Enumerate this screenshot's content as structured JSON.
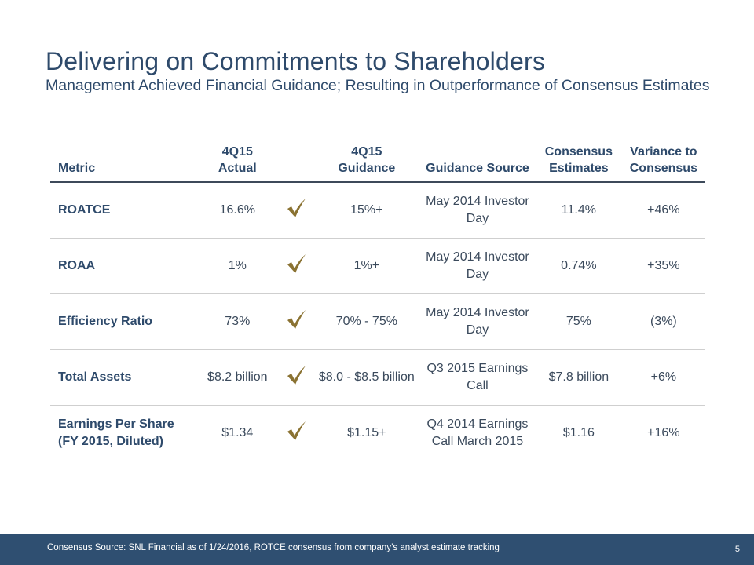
{
  "title": "Delivering on Commitments to Shareholders",
  "subtitle": "Management Achieved Financial Guidance; Resulting in Outperformance of Consensus Estimates",
  "colors": {
    "title": "#2e4a6b",
    "check": "#8a7232",
    "footer_bg": "#2f4f71"
  },
  "table": {
    "headers": {
      "metric": "Metric",
      "actual_line1": "4Q15",
      "actual_line2": "Actual",
      "guidance_line1": "4Q15",
      "guidance_line2": "Guidance",
      "source": "Guidance Source",
      "consensus_line1": "Consensus",
      "consensus_line2": "Estimates",
      "variance_line1": "Variance to",
      "variance_line2": "Consensus"
    },
    "rows": [
      {
        "metric_line1": "ROATCE",
        "metric_line2": "",
        "actual": "16.6%",
        "check_icon": "checkmark-icon",
        "guidance": "15%+",
        "source_line1": "May 2014 Investor",
        "source_line2": "Day",
        "consensus": "11.4%",
        "variance": "+46%"
      },
      {
        "metric_line1": "ROAA",
        "metric_line2": "",
        "actual": "1%",
        "check_icon": "checkmark-icon",
        "guidance": "1%+",
        "source_line1": "May 2014 Investor",
        "source_line2": "Day",
        "consensus": "0.74%",
        "variance": "+35%"
      },
      {
        "metric_line1": "Efficiency Ratio",
        "metric_line2": "",
        "actual": "73%",
        "check_icon": "checkmark-icon",
        "guidance": "70% - 75%",
        "source_line1": "May 2014 Investor",
        "source_line2": "Day",
        "consensus": "75%",
        "variance": "(3%)"
      },
      {
        "metric_line1": "Total Assets",
        "metric_line2": "",
        "actual": "$8.2 billion",
        "check_icon": "checkmark-icon",
        "guidance": "$8.0 - $8.5 billion",
        "source_line1": "Q3 2015 Earnings",
        "source_line2": "Call",
        "consensus": "$7.8 billion",
        "variance": "+6%"
      },
      {
        "metric_line1": "Earnings Per Share",
        "metric_line2": "(FY 2015, Diluted)",
        "actual": "$1.34",
        "check_icon": "checkmark-icon",
        "guidance": "$1.15+",
        "source_line1": "Q4 2014 Earnings",
        "source_line2": "Call March 2015",
        "consensus": "$1.16",
        "variance": "+16%"
      }
    ]
  },
  "footer": {
    "note": "Consensus Source: SNL Financial as of 1/24/2016, ROTCE consensus from company’s analyst estimate tracking",
    "page_number": "5"
  }
}
